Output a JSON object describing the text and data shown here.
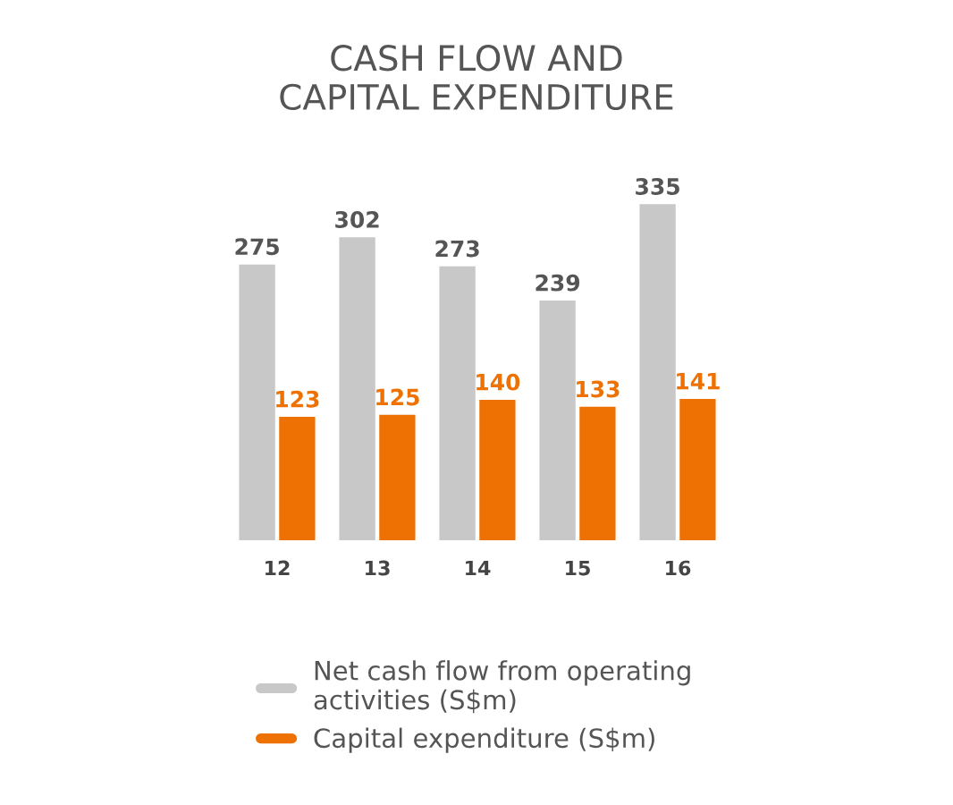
{
  "chart_data": {
    "type": "bar",
    "title": "CASH FLOW AND\nCAPITAL EXPENDITURE",
    "categories": [
      "12",
      "13",
      "14",
      "15",
      "16"
    ],
    "series": [
      {
        "name": "Net cash flow from operating\nactivities (S$m)",
        "color": "#c8c8c8",
        "values": [
          275,
          302,
          273,
          239,
          335
        ]
      },
      {
        "name": "Capital expenditure (S$m)",
        "color": "#ee7203",
        "values": [
          123,
          125,
          140,
          133,
          141
        ]
      }
    ],
    "data_labels": true,
    "grid": false,
    "legend": "bottom"
  }
}
